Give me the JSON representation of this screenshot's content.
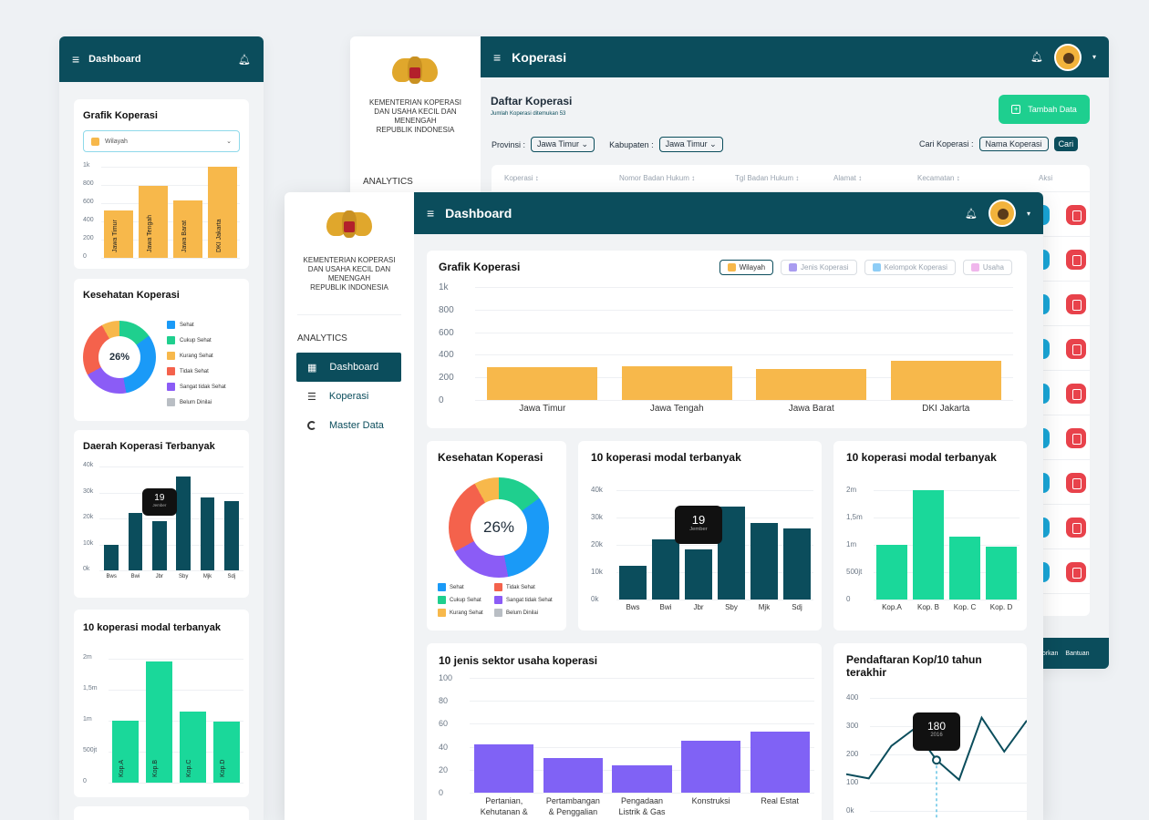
{
  "mobile": {
    "header_title": "Dashboard",
    "grafik": {
      "title": "Grafik Koperasi",
      "select_value": "Wilayah",
      "y_ticks": [
        "1k",
        "800",
        "600",
        "400",
        "200",
        "0"
      ],
      "bars": [
        {
          "label": "Jawa Timur",
          "value": 520
        },
        {
          "label": "Jawa Tengah",
          "value": 790
        },
        {
          "label": "Jawa Barat",
          "value": 630
        },
        {
          "label": "DKI Jakarta",
          "value": 1000
        }
      ]
    },
    "kesehatan": {
      "title": "Kesehatan Koperasi",
      "center": "26%",
      "legend": [
        "Sehat",
        "Cukup Sehat",
        "Kurang Sehat",
        "Tidak Sehat",
        "Sangat tidak Sehat",
        "Belum Dinilai"
      ]
    },
    "daerah": {
      "title": "Daerah Koperasi Terbanyak",
      "y_ticks": [
        "40k",
        "30k",
        "20k",
        "10k",
        "0k"
      ],
      "tooltip_value": "19",
      "tooltip_label": "Jember",
      "bars": [
        {
          "label": "Bws",
          "value": 10000
        },
        {
          "label": "Bwi",
          "value": 22000
        },
        {
          "label": "Jbr",
          "value": 19000
        },
        {
          "label": "Sby",
          "value": 36000
        },
        {
          "label": "Mjk",
          "value": 28000
        },
        {
          "label": "Sdj",
          "value": 26500
        }
      ]
    },
    "modal": {
      "title": "10 koperasi modal terbanyak",
      "y_ticks": [
        "2m",
        "1,5m",
        "1m",
        "500jt",
        "0"
      ],
      "bars": [
        {
          "label": "Kop.A",
          "value": 1000000
        },
        {
          "label": "Kop.B",
          "value": 1950000
        },
        {
          "label": "Kop.C",
          "value": 1150000
        },
        {
          "label": "Kop.D",
          "value": 980000
        }
      ]
    }
  },
  "ministry": {
    "line1": "KEMENTERIAN KOPERASI",
    "line2": "DAN USAHA KECIL DAN",
    "line3": "MENENGAH",
    "line4": "REPUBLIK INDONESIA"
  },
  "koperasi_page": {
    "header_title": "Koperasi",
    "sidebar_section": "ANALYTICS",
    "list_title": "Daftar Koperasi",
    "list_subtitle": "Jumlah Koperasi ditemukan 53",
    "add_button": "Tambah Data",
    "provinsi_label": "Provinsi :",
    "provinsi_value": "Jawa Timur",
    "kabupaten_label": "Kabupaten :",
    "kabupaten_value": "Jawa Timur",
    "cari_label": "Cari Koperasi :",
    "cari_placeholder": "Nama Koperasi",
    "cari_button": "Cari",
    "columns": [
      "Koperasi ↕",
      "Nomor Badan Hukum ↕",
      "Tgl Badan Hukum ↕",
      "Alamat ↕",
      "Kecamatan ↕",
      "Aksi"
    ],
    "footer_links": [
      "porkan",
      "Bantuan"
    ]
  },
  "dashboard": {
    "header_title": "Dashboard",
    "sidebar": {
      "section": "ANALYTICS",
      "items": [
        {
          "label": "Dashboard",
          "icon": "grid-icon"
        },
        {
          "label": "Koperasi",
          "icon": "list-icon"
        },
        {
          "label": "Master Data",
          "icon": "circle-icon"
        }
      ]
    },
    "grafik": {
      "title": "Grafik Koperasi",
      "legend": [
        "Wilayah",
        "Jenis Koperasi",
        "Kelompok Koperasi",
        "Usaha"
      ],
      "legend_colors": [
        "#f7b84b",
        "#a99cf0",
        "#8ecdf6",
        "#f0b6ec"
      ],
      "y_ticks": [
        "1k",
        "800",
        "600",
        "400",
        "200",
        "0"
      ]
    },
    "kesehatan": {
      "title": "Kesehatan Koperasi",
      "center": "26%",
      "legend": [
        "Sehat",
        "Tidak Sehat",
        "Cukup Sehat",
        "Sangat tidak Sehat",
        "Kurang Sehat",
        "Belum Dinilai"
      ]
    },
    "modal_dark": {
      "title": "10 koperasi modal terbanyak",
      "y_ticks": [
        "40k",
        "30k",
        "20k",
        "10k",
        "0k"
      ],
      "tooltip_value": "19",
      "tooltip_label": "Jember"
    },
    "modal_green": {
      "title": "10 koperasi modal terbanyak",
      "y_ticks": [
        "2m",
        "1,5m",
        "1m",
        "500jt",
        "0"
      ]
    },
    "sektor": {
      "title": "10 jenis sektor usaha koperasi",
      "y_ticks": [
        "100",
        "80",
        "60",
        "40",
        "20",
        "0"
      ],
      "x_labels": [
        "Pertanian,",
        "Pertambangan",
        "Pengadaan",
        "Konstruksi",
        "Real Estat"
      ],
      "x_labels2": [
        "Kehutanan &",
        "& Penggalian",
        "Listrik & Gas",
        "",
        ""
      ]
    },
    "pendaftaran": {
      "title_line1": "Pendaftaran Kop/10 tahun",
      "title_line2": "terakhir",
      "y_ticks": [
        "400",
        "300",
        "200",
        "100",
        "0k"
      ],
      "tooltip_value": "180",
      "tooltip_label": "2016"
    }
  },
  "chart_data": [
    {
      "type": "bar",
      "title": "Grafik Koperasi",
      "categories": [
        "Jawa Timur",
        "Jawa Tengah",
        "Jawa Barat",
        "DKI Jakarta"
      ],
      "values": [
        290,
        300,
        275,
        345
      ],
      "ylim": [
        0,
        1000
      ]
    },
    {
      "type": "pie",
      "title": "Kesehatan Koperasi",
      "categories": [
        "Sehat",
        "Cukup Sehat",
        "Kurang Sehat",
        "Tidak Sehat",
        "Sangat tidak Sehat"
      ],
      "values": [
        32,
        15,
        8,
        25,
        20
      ],
      "colors": [
        "#1a9af7",
        "#1fcf8e",
        "#f7b84b",
        "#f4624c",
        "#8b5cf6"
      ]
    },
    {
      "type": "bar",
      "title": "10 koperasi modal terbanyak",
      "categories": [
        "Bws",
        "Bwi",
        "Jbr",
        "Sby",
        "Mjk",
        "Sdj"
      ],
      "values": [
        12500,
        22000,
        18500,
        34000,
        28000,
        26000
      ],
      "ylim": [
        0,
        40000
      ]
    },
    {
      "type": "bar",
      "title": "10 koperasi modal terbanyak",
      "categories": [
        "Kop.A",
        "Kop. B",
        "Kop. C",
        "Kop. D"
      ],
      "values": [
        1000000,
        2000000,
        1150000,
        970000
      ],
      "ylim": [
        0,
        2000000
      ]
    },
    {
      "type": "bar",
      "title": "10 jenis sektor usaha koperasi",
      "categories": [
        "Pertanian, Kehutanan &",
        "Pertambangan & Penggalian",
        "Pengadaan Listrik & Gas",
        "Konstruksi",
        "Real Estat"
      ],
      "values": [
        42,
        30,
        24,
        45,
        53
      ],
      "ylim": [
        0,
        100
      ]
    },
    {
      "type": "line",
      "title": "Pendaftaran Kop/10 tahun terakhir",
      "x": [
        1,
        2,
        3,
        4,
        5,
        6,
        7,
        8,
        9
      ],
      "values": [
        130,
        115,
        230,
        290,
        180,
        110,
        330,
        210,
        320
      ],
      "ylim": [
        0,
        400
      ],
      "annotations": [
        "180 2016"
      ]
    }
  ]
}
